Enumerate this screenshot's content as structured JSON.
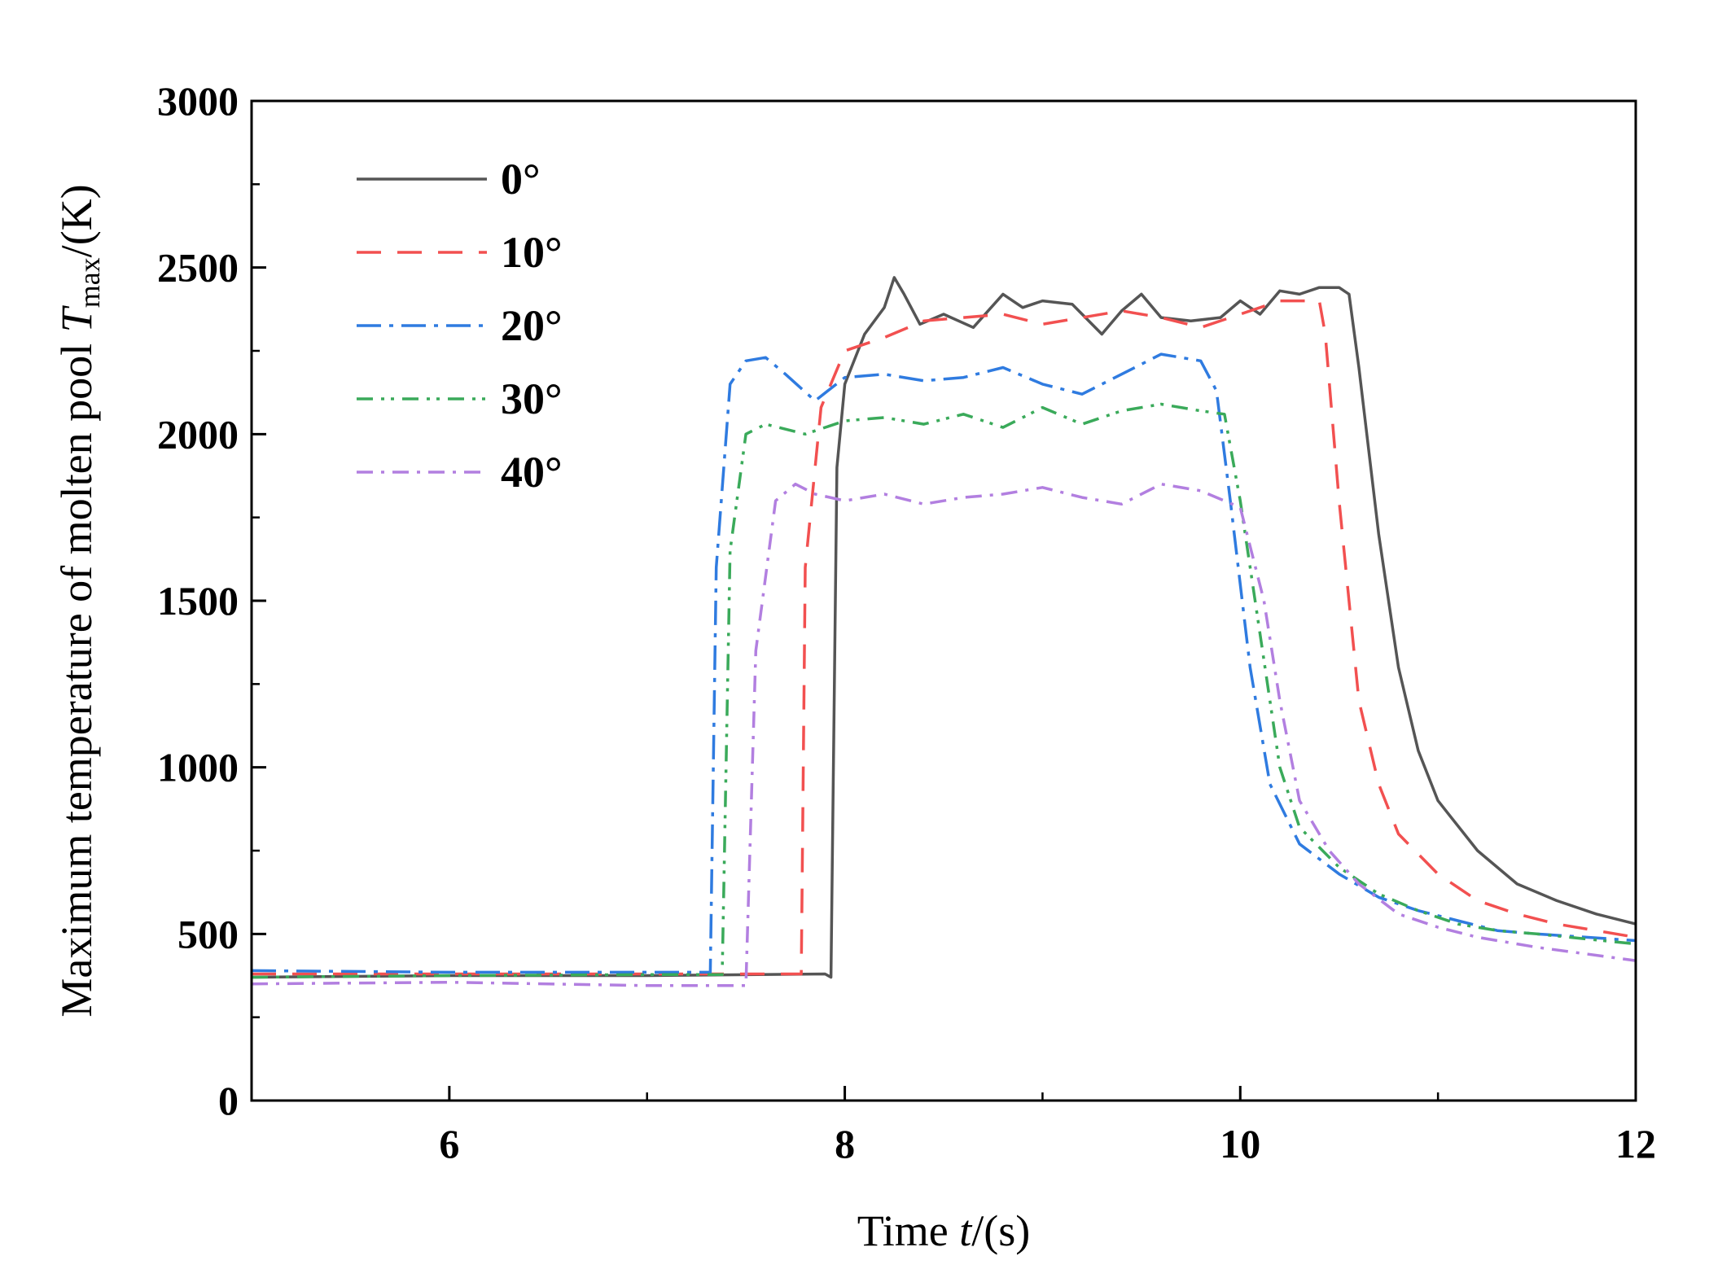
{
  "chart_data": {
    "type": "line",
    "title": "",
    "xlabel": {
      "prefix": "Time ",
      "var": "t",
      "suffix": "/(s)"
    },
    "ylabel": {
      "prefix": "Maximum temperature of molten pool ",
      "var": "T",
      "sub": "max",
      "suffix": "/(K)"
    },
    "xlim": [
      5,
      12
    ],
    "ylim": [
      0,
      3000
    ],
    "xticks": [
      6,
      8,
      10,
      12
    ],
    "xtick_labels": [
      "6",
      "8",
      "10",
      "12"
    ],
    "yticks": [
      0,
      500,
      1000,
      1500,
      2000,
      2500,
      3000
    ],
    "ytick_labels": [
      "0",
      "500",
      "1000",
      "1500",
      "2000",
      "2500",
      "3000"
    ],
    "legend_position": "top-left",
    "grid": false,
    "series": [
      {
        "name": "0°",
        "color": "#555555",
        "dash": "solid",
        "points": [
          [
            5,
            370
          ],
          [
            6,
            375
          ],
          [
            7,
            375
          ],
          [
            7.9,
            380
          ],
          [
            7.93,
            370
          ],
          [
            7.96,
            1900
          ],
          [
            8.0,
            2150
          ],
          [
            8.1,
            2300
          ],
          [
            8.2,
            2380
          ],
          [
            8.25,
            2470
          ],
          [
            8.3,
            2420
          ],
          [
            8.38,
            2330
          ],
          [
            8.5,
            2360
          ],
          [
            8.65,
            2320
          ],
          [
            8.8,
            2420
          ],
          [
            8.9,
            2380
          ],
          [
            9.0,
            2400
          ],
          [
            9.15,
            2390
          ],
          [
            9.3,
            2300
          ],
          [
            9.4,
            2370
          ],
          [
            9.5,
            2420
          ],
          [
            9.6,
            2350
          ],
          [
            9.75,
            2340
          ],
          [
            9.9,
            2350
          ],
          [
            10.0,
            2400
          ],
          [
            10.1,
            2360
          ],
          [
            10.2,
            2430
          ],
          [
            10.3,
            2420
          ],
          [
            10.4,
            2440
          ],
          [
            10.5,
            2440
          ],
          [
            10.55,
            2420
          ],
          [
            10.6,
            2200
          ],
          [
            10.7,
            1700
          ],
          [
            10.8,
            1300
          ],
          [
            10.9,
            1050
          ],
          [
            11.0,
            900
          ],
          [
            11.2,
            750
          ],
          [
            11.4,
            650
          ],
          [
            11.6,
            600
          ],
          [
            11.8,
            560
          ],
          [
            12.0,
            530
          ]
        ]
      },
      {
        "name": "10°",
        "color": "#f25050",
        "dash": "30,20",
        "points": [
          [
            5,
            380
          ],
          [
            6,
            380
          ],
          [
            7,
            380
          ],
          [
            7.78,
            380
          ],
          [
            7.8,
            1600
          ],
          [
            7.88,
            2080
          ],
          [
            8.0,
            2250
          ],
          [
            8.2,
            2290
          ],
          [
            8.4,
            2340
          ],
          [
            8.6,
            2350
          ],
          [
            8.8,
            2360
          ],
          [
            9.0,
            2330
          ],
          [
            9.2,
            2350
          ],
          [
            9.4,
            2370
          ],
          [
            9.6,
            2350
          ],
          [
            9.8,
            2320
          ],
          [
            10.0,
            2360
          ],
          [
            10.2,
            2400
          ],
          [
            10.4,
            2400
          ],
          [
            10.43,
            2300
          ],
          [
            10.5,
            1800
          ],
          [
            10.6,
            1200
          ],
          [
            10.7,
            950
          ],
          [
            10.8,
            800
          ],
          [
            11.0,
            680
          ],
          [
            11.2,
            600
          ],
          [
            11.4,
            560
          ],
          [
            11.6,
            530
          ],
          [
            11.8,
            510
          ],
          [
            12.0,
            490
          ]
        ]
      },
      {
        "name": "20°",
        "color": "#2f7be0",
        "dash": "30,10,5,10",
        "points": [
          [
            5,
            390
          ],
          [
            6,
            385
          ],
          [
            7,
            385
          ],
          [
            7.32,
            385
          ],
          [
            7.35,
            1600
          ],
          [
            7.42,
            2150
          ],
          [
            7.5,
            2220
          ],
          [
            7.6,
            2230
          ],
          [
            7.7,
            2180
          ],
          [
            7.85,
            2100
          ],
          [
            8.0,
            2170
          ],
          [
            8.2,
            2180
          ],
          [
            8.4,
            2160
          ],
          [
            8.6,
            2170
          ],
          [
            8.8,
            2200
          ],
          [
            9.0,
            2150
          ],
          [
            9.2,
            2120
          ],
          [
            9.4,
            2180
          ],
          [
            9.6,
            2240
          ],
          [
            9.8,
            2220
          ],
          [
            9.88,
            2130
          ],
          [
            9.95,
            1800
          ],
          [
            10.05,
            1300
          ],
          [
            10.15,
            950
          ],
          [
            10.3,
            770
          ],
          [
            10.5,
            680
          ],
          [
            10.7,
            610
          ],
          [
            10.9,
            570
          ],
          [
            11.1,
            540
          ],
          [
            11.3,
            510
          ],
          [
            11.5,
            500
          ],
          [
            12.0,
            480
          ]
        ]
      },
      {
        "name": "30°",
        "color": "#3aaa5a",
        "dash": "20,10,4,8,4,10",
        "points": [
          [
            5,
            370
          ],
          [
            6,
            375
          ],
          [
            7,
            378
          ],
          [
            7.38,
            378
          ],
          [
            7.42,
            1650
          ],
          [
            7.5,
            2000
          ],
          [
            7.6,
            2030
          ],
          [
            7.8,
            2000
          ],
          [
            8.0,
            2040
          ],
          [
            8.2,
            2050
          ],
          [
            8.4,
            2030
          ],
          [
            8.6,
            2060
          ],
          [
            8.8,
            2020
          ],
          [
            9.0,
            2080
          ],
          [
            9.2,
            2030
          ],
          [
            9.4,
            2070
          ],
          [
            9.6,
            2090
          ],
          [
            9.8,
            2070
          ],
          [
            9.92,
            2060
          ],
          [
            10.0,
            1800
          ],
          [
            10.1,
            1400
          ],
          [
            10.2,
            1000
          ],
          [
            10.3,
            820
          ],
          [
            10.5,
            700
          ],
          [
            10.7,
            620
          ],
          [
            10.9,
            570
          ],
          [
            11.1,
            530
          ],
          [
            11.3,
            510
          ],
          [
            11.5,
            500
          ],
          [
            12.0,
            470
          ]
        ]
      },
      {
        "name": "40°",
        "color": "#b27fe0",
        "dash": "20,10,4,10",
        "points": [
          [
            5,
            350
          ],
          [
            6,
            355
          ],
          [
            7,
            345
          ],
          [
            7.5,
            345
          ],
          [
            7.55,
            1350
          ],
          [
            7.65,
            1800
          ],
          [
            7.75,
            1850
          ],
          [
            7.85,
            1820
          ],
          [
            8.0,
            1800
          ],
          [
            8.2,
            1820
          ],
          [
            8.4,
            1790
          ],
          [
            8.6,
            1810
          ],
          [
            8.8,
            1820
          ],
          [
            9.0,
            1840
          ],
          [
            9.2,
            1810
          ],
          [
            9.4,
            1790
          ],
          [
            9.6,
            1850
          ],
          [
            9.8,
            1830
          ],
          [
            10.0,
            1780
          ],
          [
            10.12,
            1500
          ],
          [
            10.2,
            1200
          ],
          [
            10.3,
            900
          ],
          [
            10.45,
            750
          ],
          [
            10.6,
            650
          ],
          [
            10.8,
            560
          ],
          [
            11.0,
            520
          ],
          [
            11.2,
            490
          ],
          [
            11.5,
            460
          ],
          [
            12.0,
            420
          ]
        ]
      }
    ]
  }
}
